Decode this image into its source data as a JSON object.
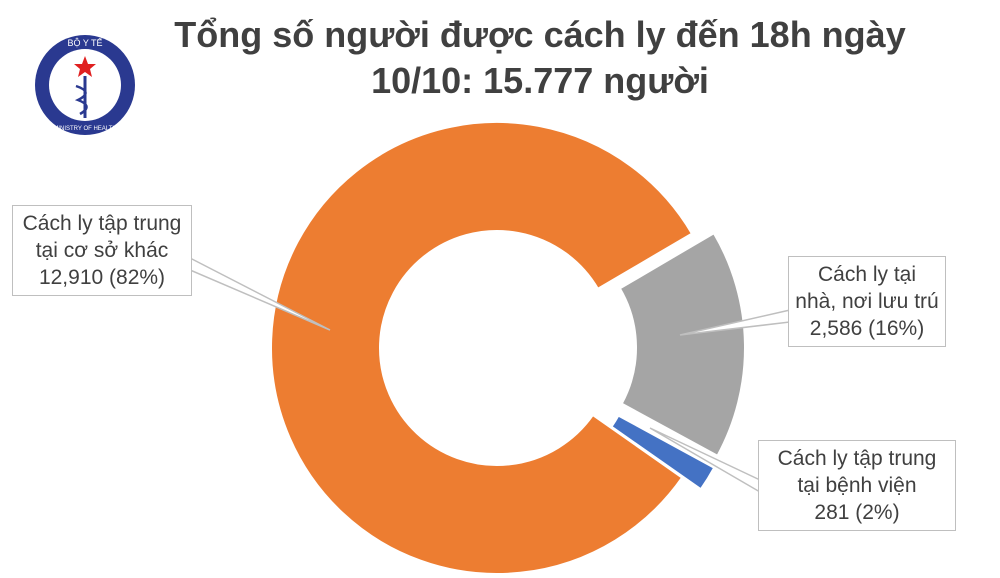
{
  "logo": {
    "top": "BỘ Y TẾ",
    "bottom": "MINISTRY OF HEALTH"
  },
  "chart_data": {
    "type": "pie",
    "donut": true,
    "title": "Tổng số người được cách ly đến 18h ngày 10/10: 15.777 người",
    "categories": [
      "Cách ly tập trung tại cơ sở khác",
      "Cách ly tại nhà, nơi lưu trú",
      "Cách ly tập trung tại bệnh viện"
    ],
    "values": [
      12910,
      2586,
      281
    ],
    "value_labels": [
      "12,910 (82%)",
      "2,586 (16%)",
      "281 (2%)"
    ],
    "colors": [
      "#ed7d31",
      "#a5a5a5",
      "#4472c4"
    ]
  }
}
